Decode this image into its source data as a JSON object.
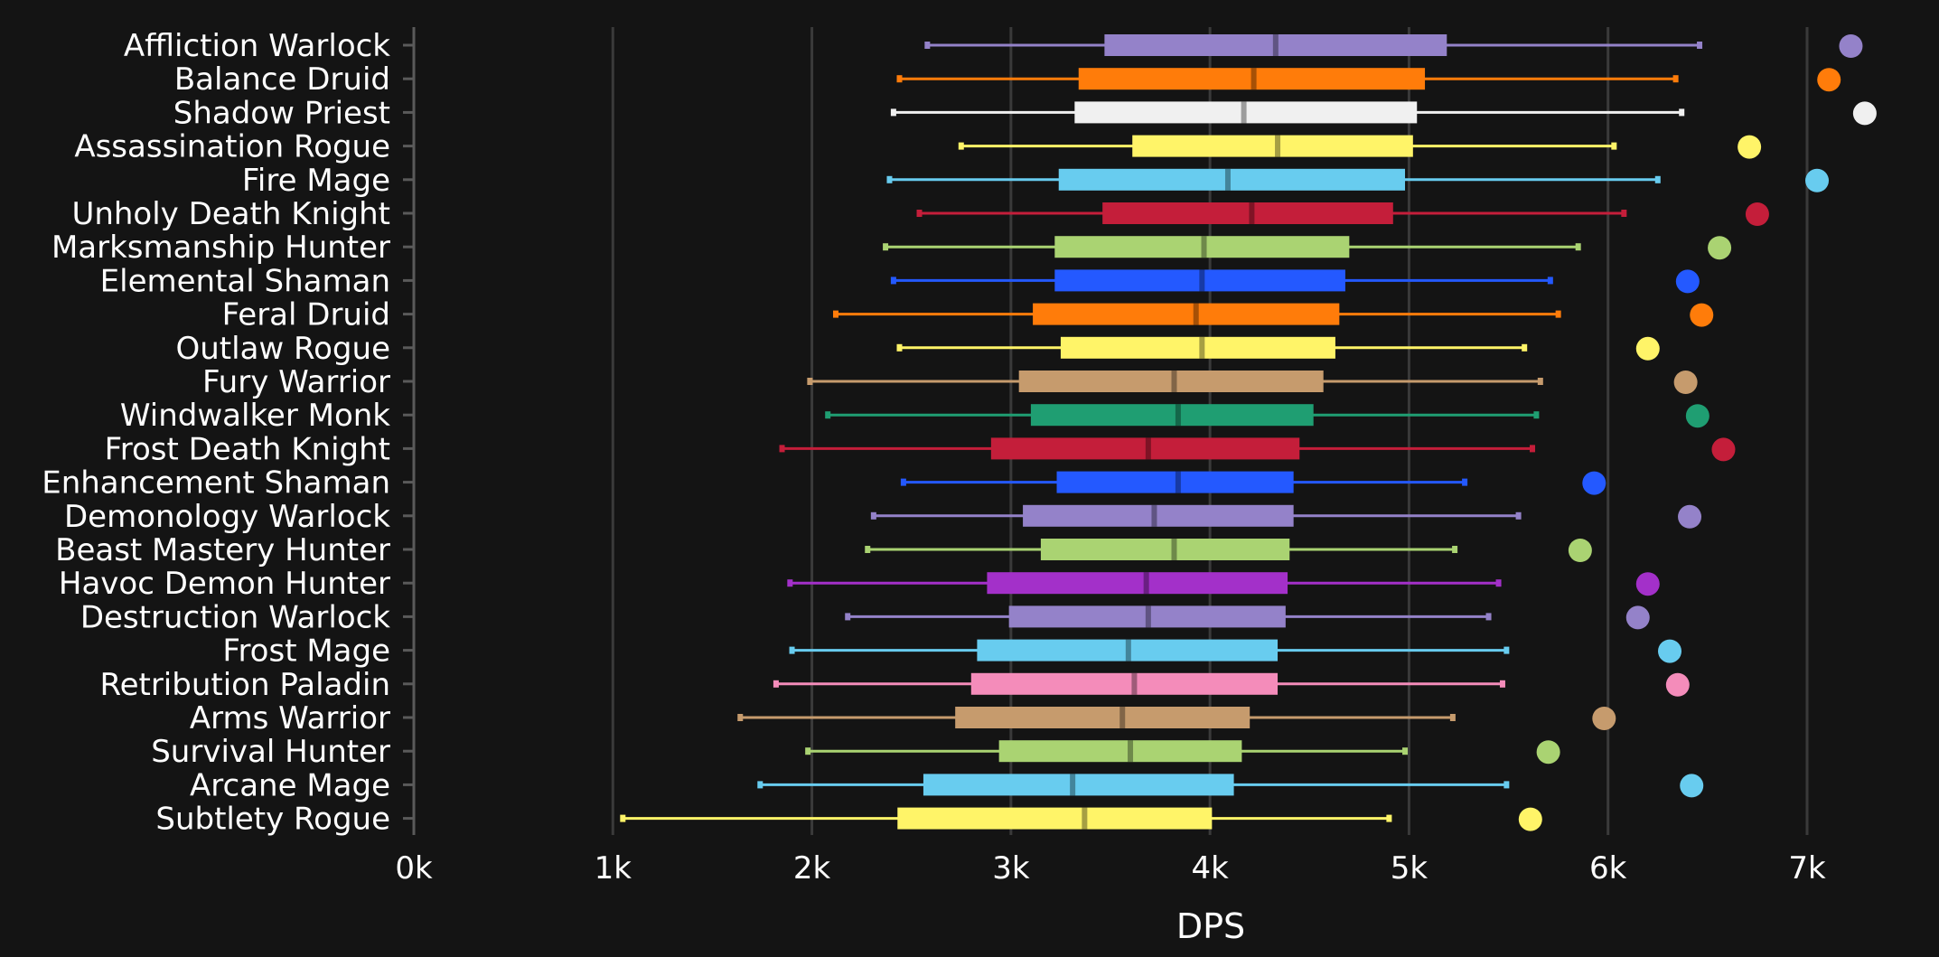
{
  "chart_data": {
    "type": "box",
    "orientation": "horizontal",
    "xlabel": "DPS",
    "ylabel": "",
    "xlim": [
      0,
      7000
    ],
    "x_ticks": [
      0,
      1000,
      2000,
      3000,
      4000,
      5000,
      6000,
      7000
    ],
    "x_tick_labels": [
      "0k",
      "1k",
      "2k",
      "3k",
      "4k",
      "5k",
      "6k",
      "7k"
    ],
    "grid": "vertical",
    "legend": "none",
    "series": [
      {
        "name": "Affliction Warlock",
        "color": "#9482c9",
        "min": 2580,
        "q1": 3470,
        "median": 4330,
        "q3": 5190,
        "max": 6460,
        "point": 7220
      },
      {
        "name": "Balance Druid",
        "color": "#ff7c0a",
        "min": 2440,
        "q1": 3340,
        "median": 4220,
        "q3": 5080,
        "max": 6340,
        "point": 7110
      },
      {
        "name": "Shadow Priest",
        "color": "#f0f0f0",
        "min": 2410,
        "q1": 3320,
        "median": 4170,
        "q3": 5040,
        "max": 6370,
        "point": 7290
      },
      {
        "name": "Assassination Rogue",
        "color": "#fff468",
        "min": 2750,
        "q1": 3610,
        "median": 4340,
        "q3": 5020,
        "max": 6030,
        "point": 6710
      },
      {
        "name": "Fire Mage",
        "color": "#68ccef",
        "min": 2390,
        "q1": 3240,
        "median": 4090,
        "q3": 4980,
        "max": 6250,
        "point": 7050
      },
      {
        "name": "Unholy Death Knight",
        "color": "#c41e3a",
        "min": 2540,
        "q1": 3460,
        "median": 4210,
        "q3": 4920,
        "max": 6080,
        "point": 6750
      },
      {
        "name": "Marksmanship Hunter",
        "color": "#aad372",
        "min": 2370,
        "q1": 3220,
        "median": 3970,
        "q3": 4700,
        "max": 5850,
        "point": 6560
      },
      {
        "name": "Elemental Shaman",
        "color": "#2459ff",
        "min": 2410,
        "q1": 3220,
        "median": 3960,
        "q3": 4680,
        "max": 5710,
        "point": 6400
      },
      {
        "name": "Feral Druid",
        "color": "#ff7c0a",
        "min": 2120,
        "q1": 3110,
        "median": 3930,
        "q3": 4650,
        "max": 5750,
        "point": 6470
      },
      {
        "name": "Outlaw Rogue",
        "color": "#fff468",
        "min": 2440,
        "q1": 3250,
        "median": 3960,
        "q3": 4630,
        "max": 5580,
        "point": 6200
      },
      {
        "name": "Fury Warrior",
        "color": "#c69b6d",
        "min": 1990,
        "q1": 3040,
        "median": 3820,
        "q3": 4570,
        "max": 5660,
        "point": 6390
      },
      {
        "name": "Windwalker Monk",
        "color": "#1f9e72",
        "min": 2080,
        "q1": 3100,
        "median": 3840,
        "q3": 4520,
        "max": 5640,
        "point": 6450
      },
      {
        "name": "Frost Death Knight",
        "color": "#c41e3a",
        "min": 1850,
        "q1": 2900,
        "median": 3690,
        "q3": 4450,
        "max": 5620,
        "point": 6580
      },
      {
        "name": "Enhancement Shaman",
        "color": "#2459ff",
        "min": 2460,
        "q1": 3230,
        "median": 3840,
        "q3": 4420,
        "max": 5280,
        "point": 5930
      },
      {
        "name": "Demonology Warlock",
        "color": "#9482c9",
        "min": 2310,
        "q1": 3060,
        "median": 3720,
        "q3": 4420,
        "max": 5550,
        "point": 6410
      },
      {
        "name": "Beast Mastery Hunter",
        "color": "#aad372",
        "min": 2280,
        "q1": 3150,
        "median": 3820,
        "q3": 4400,
        "max": 5230,
        "point": 5860
      },
      {
        "name": "Havoc Demon Hunter",
        "color": "#a330c9",
        "min": 1890,
        "q1": 2880,
        "median": 3680,
        "q3": 4390,
        "max": 5450,
        "point": 6200
      },
      {
        "name": "Destruction Warlock",
        "color": "#9482c9",
        "min": 2180,
        "q1": 2990,
        "median": 3690,
        "q3": 4380,
        "max": 5400,
        "point": 6150
      },
      {
        "name": "Frost Mage",
        "color": "#68ccef",
        "min": 1900,
        "q1": 2830,
        "median": 3590,
        "q3": 4340,
        "max": 5490,
        "point": 6310
      },
      {
        "name": "Retribution Paladin",
        "color": "#f48cba",
        "min": 1820,
        "q1": 2800,
        "median": 3620,
        "q3": 4340,
        "max": 5470,
        "point": 6350
      },
      {
        "name": "Arms Warrior",
        "color": "#c69b6d",
        "min": 1640,
        "q1": 2720,
        "median": 3560,
        "q3": 4200,
        "max": 5220,
        "point": 5980
      },
      {
        "name": "Survival Hunter",
        "color": "#aad372",
        "min": 1980,
        "q1": 2940,
        "median": 3600,
        "q3": 4160,
        "max": 4980,
        "point": 5700
      },
      {
        "name": "Arcane Mage",
        "color": "#68ccef",
        "min": 1740,
        "q1": 2560,
        "median": 3310,
        "q3": 4120,
        "max": 5490,
        "point": 6420
      },
      {
        "name": "Subtlety Rogue",
        "color": "#fff468",
        "min": 1050,
        "q1": 2430,
        "median": 3370,
        "q3": 4010,
        "max": 4900,
        "point": 5610
      }
    ]
  }
}
